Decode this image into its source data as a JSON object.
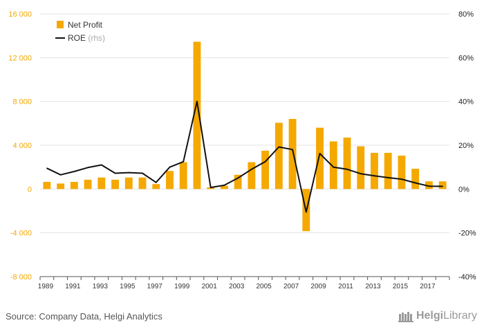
{
  "chart_data": {
    "type": "bar+line",
    "title": "",
    "categories": [
      1989,
      1990,
      1991,
      1992,
      1993,
      1994,
      1995,
      1996,
      1997,
      1998,
      1999,
      2000,
      2001,
      2002,
      2003,
      2004,
      2005,
      2006,
      2007,
      2008,
      2009,
      2010,
      2011,
      2012,
      2013,
      2014,
      2015,
      2016,
      2017,
      2018
    ],
    "x_tick_labels": [
      "1989",
      "1991",
      "1993",
      "1995",
      "1997",
      "1999",
      "2001",
      "2003",
      "2005",
      "2007",
      "2009",
      "2011",
      "2013",
      "2015",
      "2017"
    ],
    "series": [
      {
        "name": "Net Profit",
        "axis": "left",
        "type": "bar",
        "color": "#f5a800",
        "values": [
          650,
          500,
          650,
          850,
          1050,
          850,
          1050,
          1050,
          450,
          1650,
          2450,
          13450,
          150,
          300,
          1300,
          2450,
          3500,
          6050,
          6400,
          -3850,
          5600,
          4350,
          4700,
          3900,
          3300,
          3300,
          3050,
          1850,
          700,
          700
        ]
      },
      {
        "name": "ROE",
        "axis_note": "(rhs)",
        "axis": "right",
        "type": "line",
        "color": "#111111",
        "values": [
          9.5,
          6.5,
          8,
          9.8,
          11,
          7.2,
          7.5,
          7.2,
          3,
          10,
          12.5,
          40,
          0.7,
          1.7,
          5,
          9,
          12.5,
          19.2,
          18,
          -10.5,
          16.2,
          10,
          9,
          7,
          6,
          5.2,
          4.5,
          2.8,
          1.3,
          1.2
        ]
      }
    ],
    "y_left": {
      "min": -8000,
      "max": 16000,
      "ticks": [
        "-8 000",
        "-4 000",
        "0",
        "4 000",
        "8 000",
        "12 000",
        "16 000"
      ],
      "tick_values": [
        -8000,
        -4000,
        0,
        4000,
        8000,
        12000,
        16000
      ]
    },
    "y_right": {
      "min": -40,
      "max": 80,
      "ticks": [
        "-40%",
        "-20%",
        "0%",
        "20%",
        "40%",
        "60%",
        "80%"
      ],
      "tick_values": [
        -40,
        -20,
        0,
        20,
        40,
        60,
        80
      ]
    },
    "legend_position": "top-left"
  },
  "legend": {
    "net_profit": "Net Profit",
    "roe": "ROE",
    "roe_note": "(rhs)"
  },
  "footer": {
    "source": "Source: Company Data, Helgi Analytics",
    "brand_bold": "Helgi",
    "brand_rest": "Library"
  },
  "colors": {
    "accent": "#f5a800",
    "line": "#111111",
    "grid": "#e3e3e3"
  }
}
